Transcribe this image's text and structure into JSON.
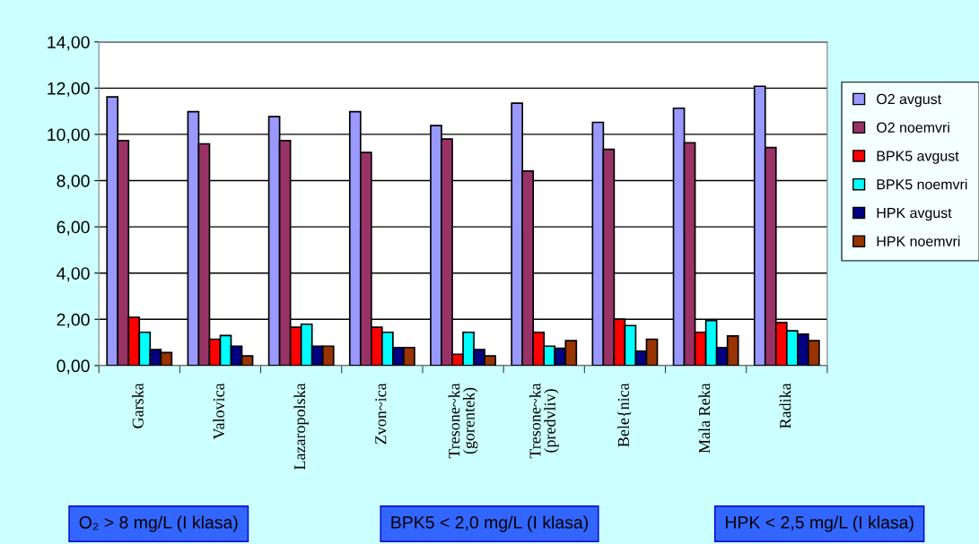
{
  "chart_data": {
    "type": "bar",
    "categories": [
      "Garska",
      "Valovica",
      "Lazaropolska",
      "Zvon~ica",
      "Tresone~ka (gorentek)",
      "Tresone~ka (predvliv)",
      "Bele{nica",
      "Mala Reka",
      "Radika"
    ],
    "series": [
      {
        "name": "O2 avgust",
        "color": "#9999ff",
        "values": [
          11.62,
          10.98,
          10.77,
          10.98,
          10.38,
          11.35,
          10.52,
          11.13,
          12.08
        ]
      },
      {
        "name": "O2 noemvri",
        "color": "#993366",
        "values": [
          9.73,
          9.59,
          9.73,
          9.22,
          9.8,
          8.41,
          9.35,
          9.64,
          9.43
        ]
      },
      {
        "name": "BPK5 avgust",
        "color": "#ff0000",
        "values": [
          2.09,
          1.14,
          1.66,
          1.66,
          0.49,
          1.44,
          2.01,
          1.44,
          1.86
        ]
      },
      {
        "name": "BPK5 noemvri",
        "color": "#00ffff",
        "values": [
          1.44,
          1.3,
          1.79,
          1.44,
          1.44,
          0.84,
          1.73,
          1.95,
          1.5
        ]
      },
      {
        "name": "HPK avgust",
        "color": "#000080",
        "values": [
          0.69,
          0.84,
          0.84,
          0.78,
          0.69,
          0.75,
          0.62,
          0.78,
          1.36
        ]
      },
      {
        "name": "HPK noemvri",
        "color": "#993300",
        "values": [
          0.56,
          0.42,
          0.84,
          0.78,
          0.42,
          1.08,
          1.14,
          1.28,
          1.08
        ]
      }
    ],
    "ylim": [
      0,
      14
    ],
    "yticks": [
      {
        "value": 0,
        "label": "0,00"
      },
      {
        "value": 2,
        "label": "2,00"
      },
      {
        "value": 4,
        "label": "4,00"
      },
      {
        "value": 6,
        "label": "6,00"
      },
      {
        "value": 8,
        "label": "8,00"
      },
      {
        "value": 10,
        "label": "10,00"
      },
      {
        "value": 12,
        "label": "12,00"
      },
      {
        "value": 14,
        "label": "14,00"
      }
    ],
    "grid": "y",
    "legend": "right",
    "annotations": [
      "O₂ > 8 mg/L (I klasa)",
      "BPK5 < 2,0 mg/L (I klasa)",
      "HPK < 2,5 mg/L (I klasa)"
    ]
  }
}
